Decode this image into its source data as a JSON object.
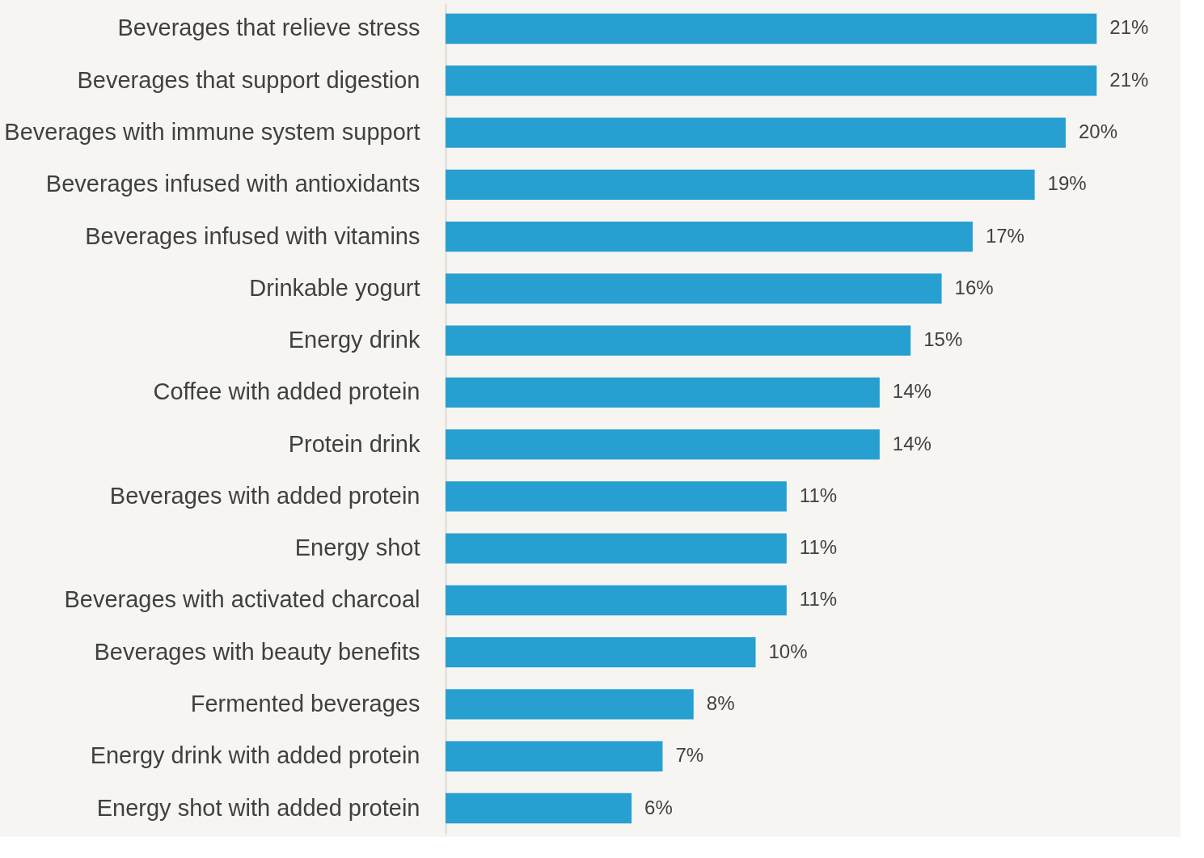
{
  "chart_data": {
    "type": "bar",
    "orientation": "horizontal",
    "categories": [
      "Beverages that relieve stress",
      "Beverages that support digestion",
      "Beverages with immune system support",
      "Beverages infused with antioxidants",
      "Beverages infused with vitamins",
      "Drinkable yogurt",
      "Energy drink",
      "Coffee with added protein",
      "Protein drink",
      "Beverages  with added protein",
      "Energy shot",
      "Beverages with activated charcoal",
      "Beverages with beauty benefits",
      "Fermented beverages",
      "Energy drink with added protein",
      "Energy shot with added protein"
    ],
    "values": [
      21,
      21,
      20,
      19,
      17,
      16,
      15,
      14,
      14,
      11,
      11,
      11,
      10,
      8,
      7,
      6
    ],
    "value_labels": [
      "21%",
      "21%",
      "20%",
      "19%",
      "17%",
      "16%",
      "15%",
      "14%",
      "14%",
      "11%",
      "11%",
      "11%",
      "10%",
      "8%",
      "7%",
      "6%"
    ],
    "color": "#279fd0",
    "xlim": [
      0,
      23.6
    ],
    "grid": false,
    "tick_labels": "y"
  }
}
